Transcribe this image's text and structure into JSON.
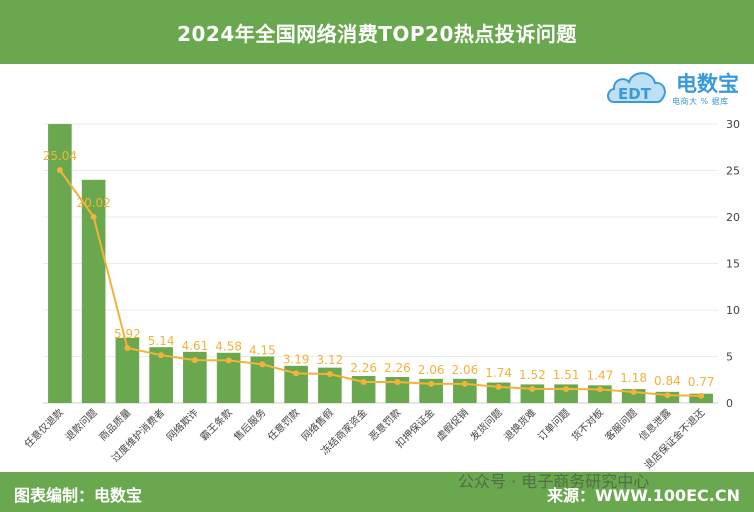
{
  "title": "2024年全国网络消费TOP20热点投诉问题",
  "footer": {
    "left": "图表编制：电数宝",
    "right": "来源：WWW.100EC.CN",
    "watermark": "公众号 · 电子商务研究中心"
  },
  "logo": {
    "brand": "电数宝",
    "sub": "电商大 % 据库",
    "mark": "EDT"
  },
  "colors": {
    "header_bg": "#6aa84f",
    "bar": "#6aa84f",
    "line": "#f4b23a",
    "label": "#f4b23a"
  },
  "chart_data": {
    "type": "bar",
    "title": "2024年全国网络消费TOP20热点投诉问题",
    "categories": [
      "任意仅退款",
      "退款问题",
      "商品质量",
      "过度维护消费者",
      "网络欺诈",
      "霸王条款",
      "售后服务",
      "任意罚款",
      "网络售假",
      "冻结商家资金",
      "恶意罚款",
      "扣押保证金",
      "虚假促销",
      "发货问题",
      "退换货难",
      "订单问题",
      "货不对板",
      "客服问题",
      "信息泄露",
      "退店保证金不退还"
    ],
    "series": [
      {
        "type": "bar",
        "values": [
          30.0,
          24.0,
          7.0,
          6.0,
          5.5,
          5.4,
          5.0,
          4.0,
          3.8,
          2.9,
          2.8,
          2.6,
          2.6,
          2.2,
          2.0,
          2.0,
          1.9,
          1.5,
          1.2,
          1.0
        ]
      },
      {
        "type": "line",
        "values": [
          25.04,
          20.02,
          5.92,
          5.14,
          4.61,
          4.58,
          4.15,
          3.19,
          3.12,
          2.26,
          2.26,
          2.06,
          2.06,
          1.74,
          1.52,
          1.51,
          1.47,
          1.18,
          0.84,
          0.77
        ]
      }
    ],
    "data_labels": [
      "25.04",
      "20.02",
      "5.92",
      "5.14",
      "4.61",
      "4.58",
      "4.15",
      "3.19",
      "3.12",
      "2.26",
      "2.26",
      "2.06",
      "2.06",
      "1.74",
      "1.52",
      "1.51",
      "1.47",
      "1.18",
      "0.84",
      "0.77"
    ],
    "y_ticks": [
      "0",
      "5",
      "10",
      "15",
      "20",
      "25",
      "30"
    ],
    "ylim": [
      0,
      30
    ],
    "y_axis_side": "right",
    "grid": true,
    "legend": "none"
  }
}
